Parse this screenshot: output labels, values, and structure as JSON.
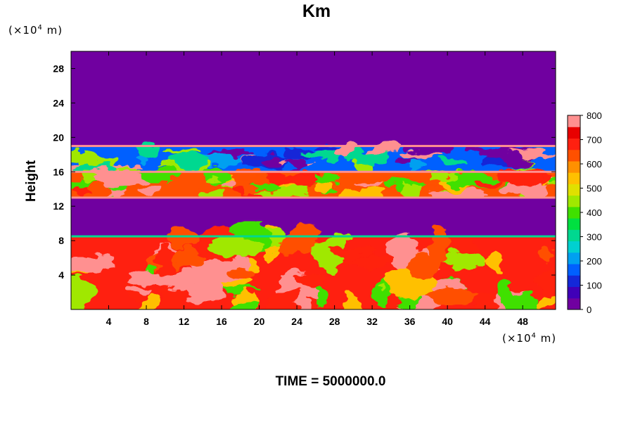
{
  "chart_data": {
    "type": "heatmap",
    "title": "Km",
    "ylabel": "Height",
    "x_unit_prefix": "(×10",
    "x_unit_exp": "4",
    "x_unit_suffix": " m)",
    "y_unit_prefix": "(×10",
    "y_unit_exp": "4",
    "y_unit_suffix": " m)",
    "xlim": [
      0,
      51.5
    ],
    "ylim": [
      0,
      30
    ],
    "x_ticks": [
      4,
      8,
      12,
      16,
      20,
      24,
      28,
      32,
      36,
      40,
      44,
      48
    ],
    "y_ticks": [
      4,
      8,
      12,
      16,
      20,
      24,
      28
    ],
    "x_tick_labels": [
      "4",
      "8",
      "12",
      "16",
      "20",
      "24",
      "28",
      "32",
      "36",
      "40",
      "44",
      "48"
    ],
    "y_tick_labels": [
      "4",
      "8",
      "12",
      "16",
      "20",
      "24",
      "28"
    ],
    "colorbar": {
      "range": [
        0,
        800
      ],
      "ticks": [
        0,
        100,
        200,
        300,
        400,
        500,
        600,
        700,
        800
      ],
      "tick_labels": [
        "0",
        "100",
        "200",
        "300",
        "400",
        "500",
        "600",
        "700",
        "800"
      ],
      "colors": [
        "#7000a0",
        "#4000b8",
        "#1428d8",
        "#0060ff",
        "#00a0f0",
        "#00d0d0",
        "#00d890",
        "#00e040",
        "#40e000",
        "#a0e800",
        "#e0e000",
        "#ffc000",
        "#ff9000",
        "#ff5000",
        "#ff2010",
        "#e80000",
        "#ff9090"
      ]
    },
    "layers": [
      {
        "y_range": [
          19.0,
          30.0
        ],
        "value": 0,
        "description_level": "low"
      },
      {
        "y_range": [
          16.0,
          19.0
        ],
        "value": 150,
        "description_level": "patchy"
      },
      {
        "y_range": [
          13.0,
          16.0
        ],
        "value": 650,
        "description_level": "high"
      },
      {
        "y_range": [
          8.5,
          13.0
        ],
        "value": 0,
        "description_level": "low"
      },
      {
        "y_range": [
          0.0,
          8.5
        ],
        "value": 700,
        "description_level": "high"
      }
    ]
  },
  "footer": {
    "time_label": "TIME = 5000000.0"
  }
}
